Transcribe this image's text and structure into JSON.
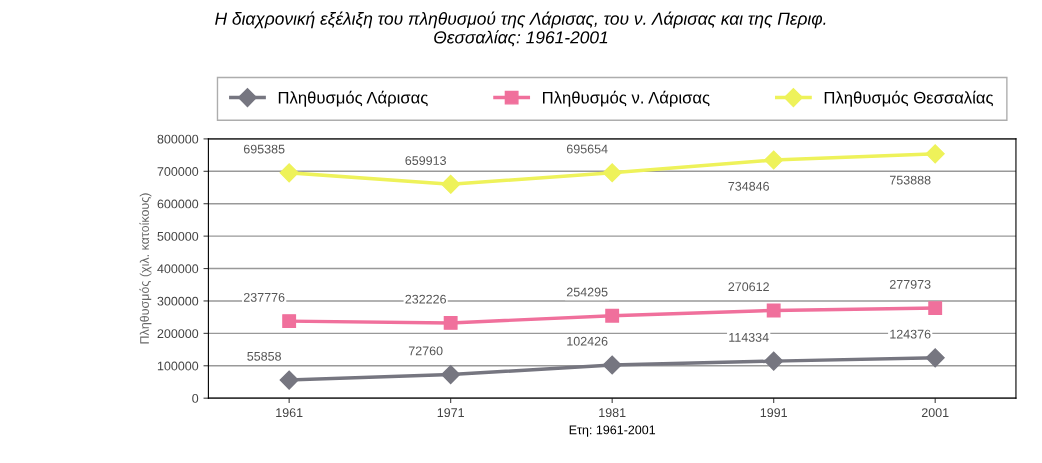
{
  "chart_data": {
    "type": "line",
    "title": "Η διαχρονική εξέλιξη του πληθυσμού της Λάρισας, του ν. Λάρισας και της Περιφ.\nΘεσσαλίας: 1961-2001",
    "xlabel": "Ετη: 1961-2001",
    "ylabel": "Πληθυσμός (χιλ. κατοίκους)",
    "categories": [
      "1961",
      "1971",
      "1981",
      "1991",
      "2001"
    ],
    "series": [
      {
        "name": "Πληθυσμός Λάρισας",
        "color": "#767680",
        "marker": "diamond",
        "values": [
          55858,
          72760,
          102426,
          114334,
          124376
        ]
      },
      {
        "name": "Πληθυσμός ν. Λάρισας",
        "color": "#f0709c",
        "marker": "square",
        "values": [
          237776,
          232226,
          254295,
          270612,
          277973
        ]
      },
      {
        "name": "Πληθυσμός Θεσσαλίας",
        "color": "#eef25a",
        "marker": "diamond",
        "values": [
          695385,
          659913,
          695654,
          734846,
          753888
        ]
      }
    ],
    "ylim": [
      0,
      800000
    ],
    "yticks": [
      0,
      100000,
      200000,
      300000,
      400000,
      500000,
      600000,
      700000,
      800000
    ],
    "grid": "y",
    "legend": "top",
    "data_labels": true
  }
}
